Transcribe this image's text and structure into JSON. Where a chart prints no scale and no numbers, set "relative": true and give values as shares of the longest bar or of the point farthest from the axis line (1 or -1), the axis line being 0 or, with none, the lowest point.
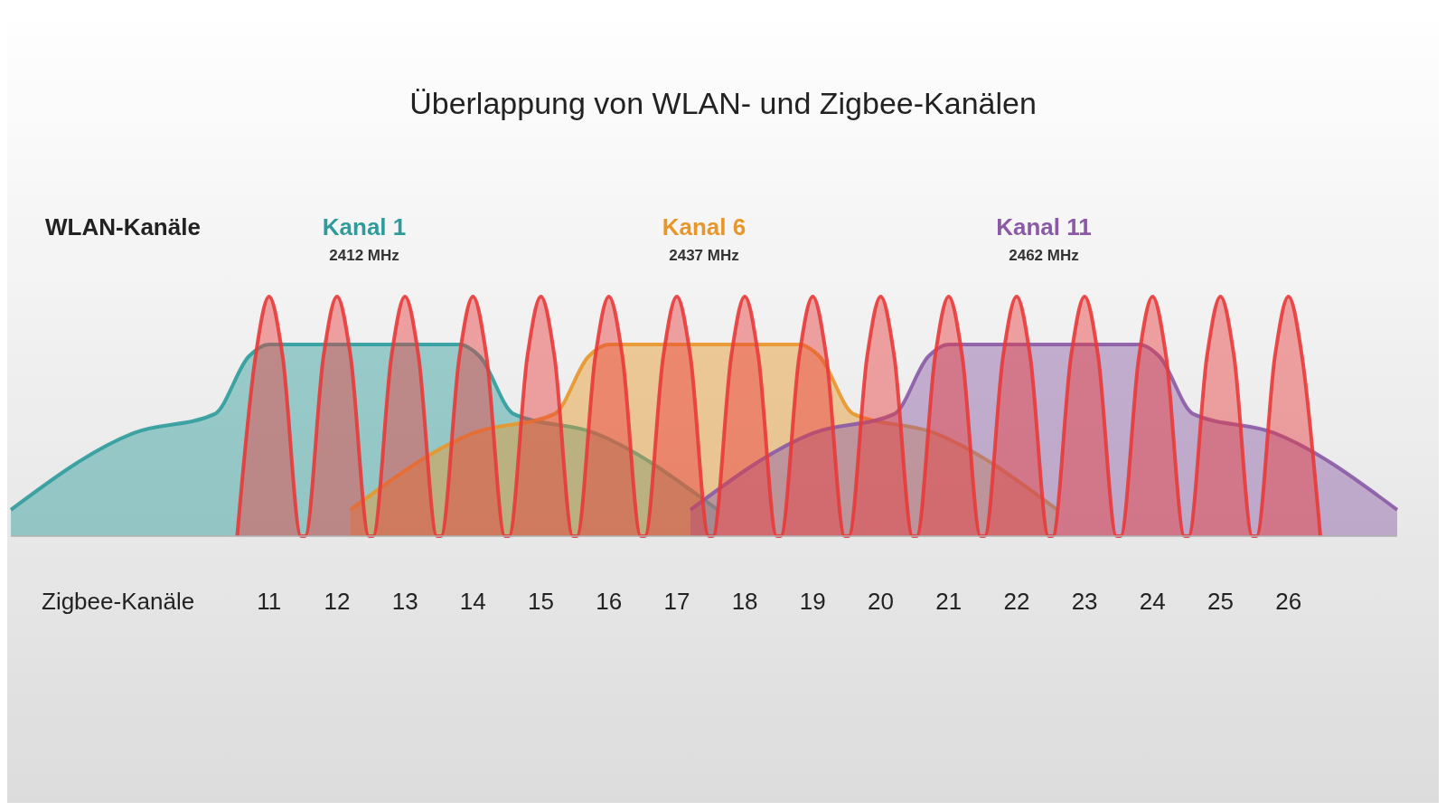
{
  "chart_data": {
    "type": "area",
    "title": "Überlappung von WLAN- und Zigbee-Kanälen",
    "xlabel": "Zigbee-Kanäle",
    "legend_title": "WLAN-Kanäle",
    "relative": true,
    "tick_labels": "x",
    "xlim": [
      7.2,
      27.6
    ],
    "xticks": [
      11,
      12,
      13,
      14,
      15,
      16,
      17,
      18,
      19,
      20,
      21,
      22,
      23,
      24,
      25,
      26
    ],
    "annotations": [
      "2412 MHz",
      "2437 MHz",
      "2462 MHz"
    ],
    "series": [
      {
        "name": "Kanal 1",
        "color": "#2f9c9c",
        "x": [
          7.2,
          9.0,
          10.2,
          10.7,
          11.0,
          13.8,
          14.1,
          14.6,
          15.8,
          17.6
        ],
        "values": [
          0.11,
          0.43,
          0.51,
          0.75,
          0.8,
          0.8,
          0.75,
          0.51,
          0.43,
          0.11
        ]
      },
      {
        "name": "Kanal 6",
        "color": "#e8962a",
        "x": [
          12.2,
          14.0,
          15.2,
          15.7,
          16.0,
          18.8,
          19.1,
          19.6,
          20.8,
          22.6
        ],
        "values": [
          0.11,
          0.43,
          0.51,
          0.75,
          0.8,
          0.8,
          0.75,
          0.51,
          0.43,
          0.11
        ]
      },
      {
        "name": "Kanal 11",
        "color": "#8a5aa6",
        "x": [
          17.2,
          19.0,
          20.2,
          20.7,
          21.0,
          23.8,
          24.1,
          24.6,
          25.8,
          27.6
        ],
        "values": [
          0.11,
          0.43,
          0.51,
          0.75,
          0.8,
          0.8,
          0.75,
          0.51,
          0.43,
          0.11
        ]
      },
      {
        "color": "#e83a3a",
        "x": [
          10.53,
          10.8,
          11,
          11.2,
          11.47,
          11.53,
          11.8,
          12,
          12.2,
          12.47,
          12.53,
          12.8,
          13,
          13.2,
          13.47,
          13.53,
          13.8,
          14,
          14.2,
          14.47,
          14.53,
          14.8,
          15,
          15.2,
          15.47,
          15.53,
          15.8,
          16,
          16.2,
          16.47,
          16.53,
          16.8,
          17,
          17.2,
          17.47,
          17.53,
          17.8,
          18,
          18.2,
          18.47,
          18.53,
          18.8,
          19,
          19.2,
          19.47,
          19.53,
          19.8,
          20,
          20.2,
          20.47,
          20.53,
          20.8,
          21,
          21.2,
          21.47,
          21.53,
          21.8,
          22,
          22.2,
          22.47,
          22.53,
          22.8,
          23,
          23.2,
          23.47,
          23.53,
          23.8,
          24,
          24.2,
          24.47,
          24.53,
          24.8,
          25,
          25.2,
          25.47,
          25.53,
          25.8,
          26,
          26.2,
          26.47
        ],
        "values": [
          0,
          0.75,
          1,
          0.75,
          0,
          0,
          0.75,
          1,
          0.75,
          0,
          0,
          0.75,
          1,
          0.75,
          0,
          0,
          0.75,
          1,
          0.75,
          0,
          0,
          0.75,
          1,
          0.75,
          0,
          0,
          0.75,
          1,
          0.75,
          0,
          0,
          0.75,
          1,
          0.75,
          0,
          0,
          0.75,
          1,
          0.75,
          0,
          0,
          0.75,
          1,
          0.75,
          0,
          0,
          0.75,
          1,
          0.75,
          0,
          0,
          0.75,
          1,
          0.75,
          0,
          0,
          0.75,
          1,
          0.75,
          0,
          0,
          0.75,
          1,
          0.75,
          0,
          0,
          0.75,
          1,
          0.75,
          0,
          0,
          0.75,
          1,
          0.75,
          0,
          0,
          0.75,
          1,
          0.75,
          0
        ]
      }
    ]
  }
}
